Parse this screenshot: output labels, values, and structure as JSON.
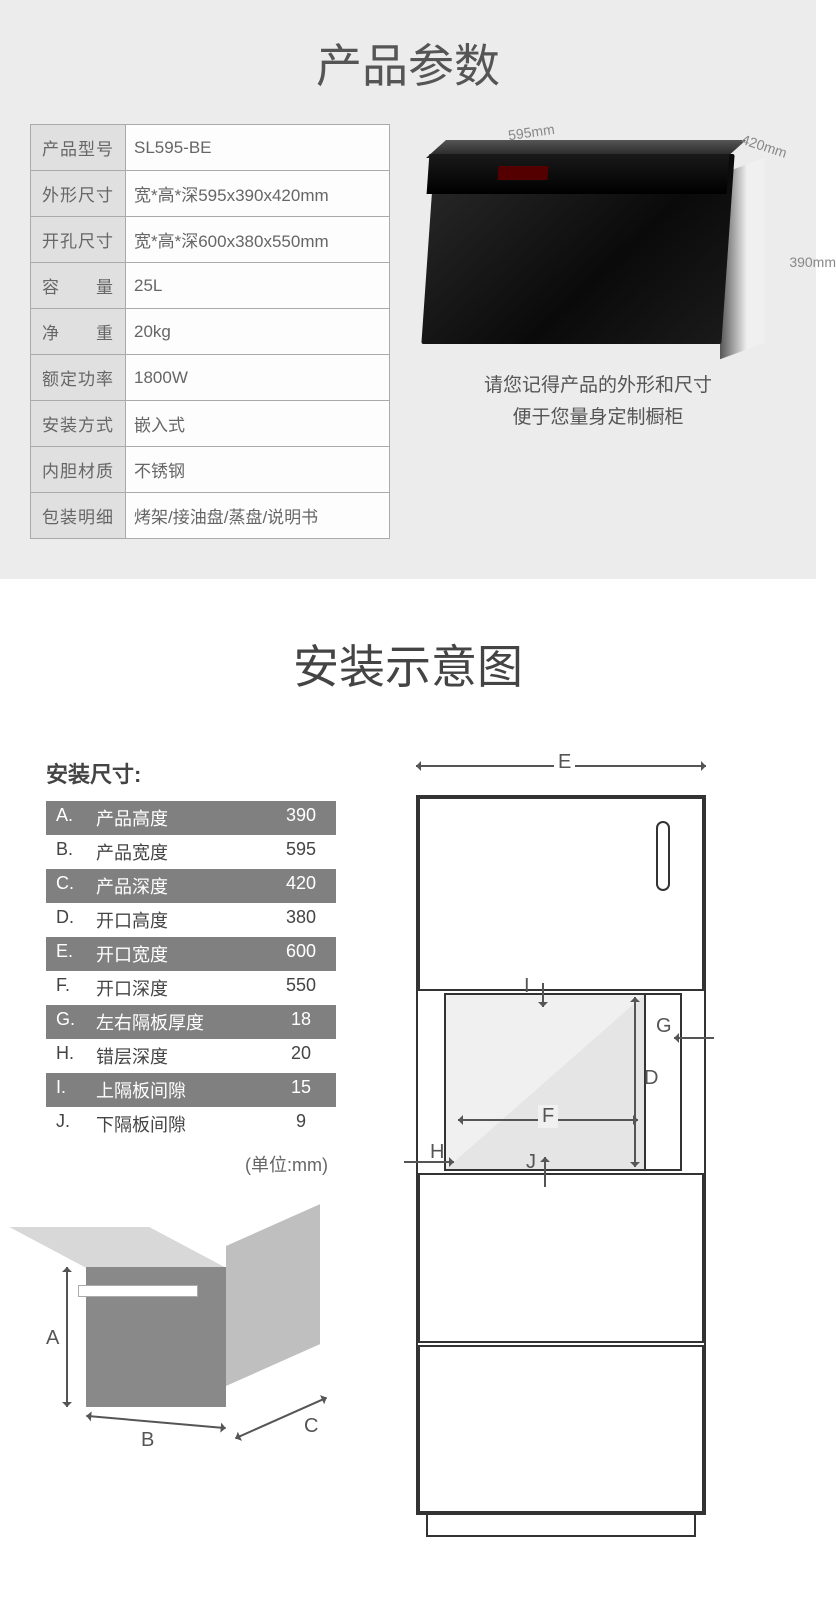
{
  "spec": {
    "title": "产品参数",
    "rows": [
      {
        "k": "产品型号",
        "v": "SL595-BE",
        "just": false
      },
      {
        "k": "外形尺寸",
        "v": "宽*高*深595x390x420mm",
        "just": false
      },
      {
        "k": "开孔尺寸",
        "v": "宽*高*深600x380x550mm",
        "just": false
      },
      {
        "k": "容　　量",
        "v": "25L",
        "just": false
      },
      {
        "k": "净　　重",
        "v": "20kg",
        "just": false
      },
      {
        "k": "额定功率",
        "v": "1800W",
        "just": false
      },
      {
        "k": "安装方式",
        "v": "嵌入式",
        "just": false
      },
      {
        "k": "内胆材质",
        "v": "不锈钢",
        "just": false
      },
      {
        "k": "包装明细",
        "v": "烤架/接油盘/蒸盘/说明书",
        "just": false
      }
    ],
    "dims": {
      "w": "595mm",
      "d": "420mm",
      "h": "390mm"
    },
    "caption1": "请您记得产品的外形和尺寸",
    "caption2": "便于您量身定制橱柜"
  },
  "install": {
    "title": "安装示意图",
    "subtitle": "安装尺寸:",
    "rows": [
      {
        "c1": "A.",
        "c2": "产品高度",
        "c3": "390"
      },
      {
        "c1": "B.",
        "c2": "产品宽度",
        "c3": "595"
      },
      {
        "c1": "C.",
        "c2": "产品深度",
        "c3": "420"
      },
      {
        "c1": "D.",
        "c2": "开口高度",
        "c3": "380"
      },
      {
        "c1": "E.",
        "c2": "开口宽度",
        "c3": "600"
      },
      {
        "c1": "F.",
        "c2": "开口深度",
        "c3": "550"
      },
      {
        "c1": "G.",
        "c2": "左右隔板厚度",
        "c3": "18"
      },
      {
        "c1": "H.",
        "c2": "错层深度",
        "c3": "20"
      },
      {
        "c1": "I.",
        "c2": "上隔板间隙",
        "c3": "15"
      },
      {
        "c1": "J.",
        "c2": "下隔板间隙",
        "c3": "9"
      }
    ],
    "unit": "(单位:mm)",
    "labels": {
      "A": "A",
      "B": "B",
      "C": "C",
      "D": "D",
      "E": "E",
      "F": "F",
      "G": "G",
      "H": "H",
      "I": "I",
      "J": "J"
    }
  },
  "colors": {
    "section_bg": "#ececec",
    "dark_row": "#808080",
    "text": "#555555"
  }
}
